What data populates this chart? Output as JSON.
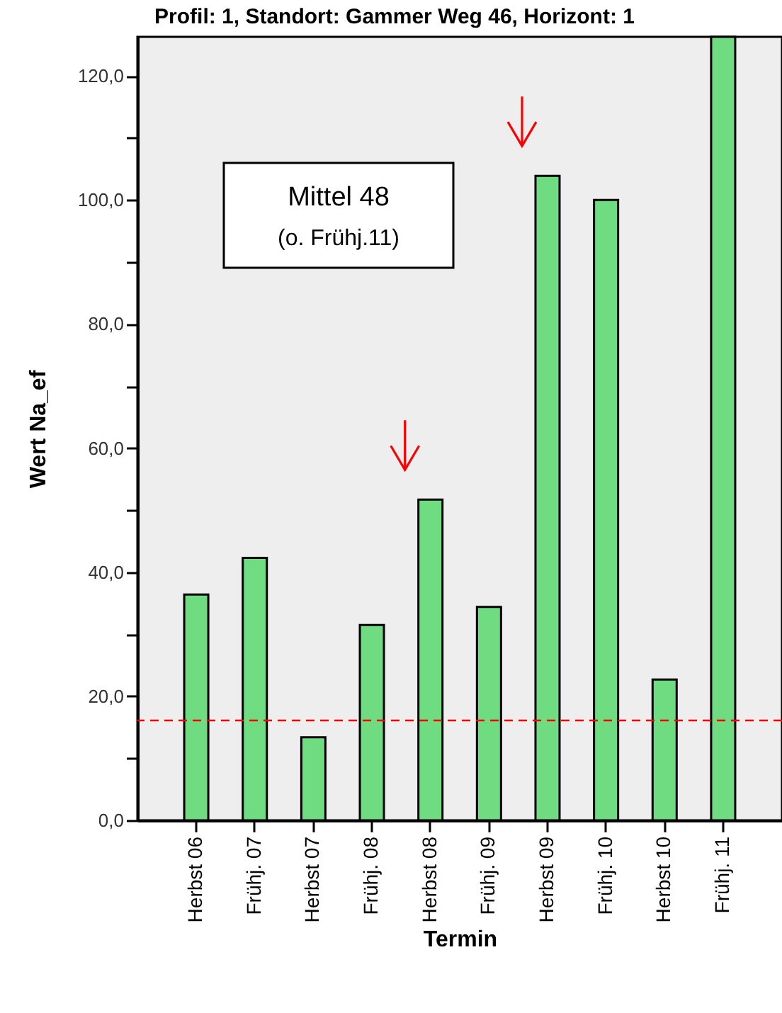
{
  "chart_data": {
    "type": "bar",
    "title": "Profil: 1, Standort: Gammer Weg 46, Horizont: 1",
    "xlabel": "Termin",
    "ylabel": "Wert Na_ef",
    "categories": [
      "Herbst 06",
      "Frühj. 07",
      "Herbst 07",
      "Frühj. 08",
      "Herbst 08",
      "Frühj. 09",
      "Herbst 09",
      "Frühj. 10",
      "Herbst 10",
      "Frühj. 11"
    ],
    "values": [
      36.4,
      42.3,
      13.4,
      31.5,
      51.7,
      34.4,
      103.9,
      100.0,
      22.7,
      126.3
    ],
    "color": "#70dc82",
    "ylim": [
      0,
      126.3
    ],
    "yticks": [
      {
        "value": 0,
        "label": "0,0"
      },
      {
        "value": 10,
        "label": null
      },
      {
        "value": 20,
        "label": "20,0"
      },
      {
        "value": 30,
        "label": null
      },
      {
        "value": 40,
        "label": "40,0"
      },
      {
        "value": 50,
        "label": null
      },
      {
        "value": 60,
        "label": "60,0"
      },
      {
        "value": 70,
        "label": null
      },
      {
        "value": 80,
        "label": "80,0"
      },
      {
        "value": 90,
        "label": null
      },
      {
        "value": 100,
        "label": "100,0"
      },
      {
        "value": 110,
        "label": null
      },
      {
        "value": 120,
        "label": "120,0"
      }
    ],
    "grid": false,
    "ref_lines": [
      {
        "axis": "y",
        "value": 16.1,
        "color": "#ff0000",
        "line_style": "dashed"
      }
    ],
    "annotations": [
      "Mittel 48",
      "(o. Frühj.11)"
    ]
  }
}
